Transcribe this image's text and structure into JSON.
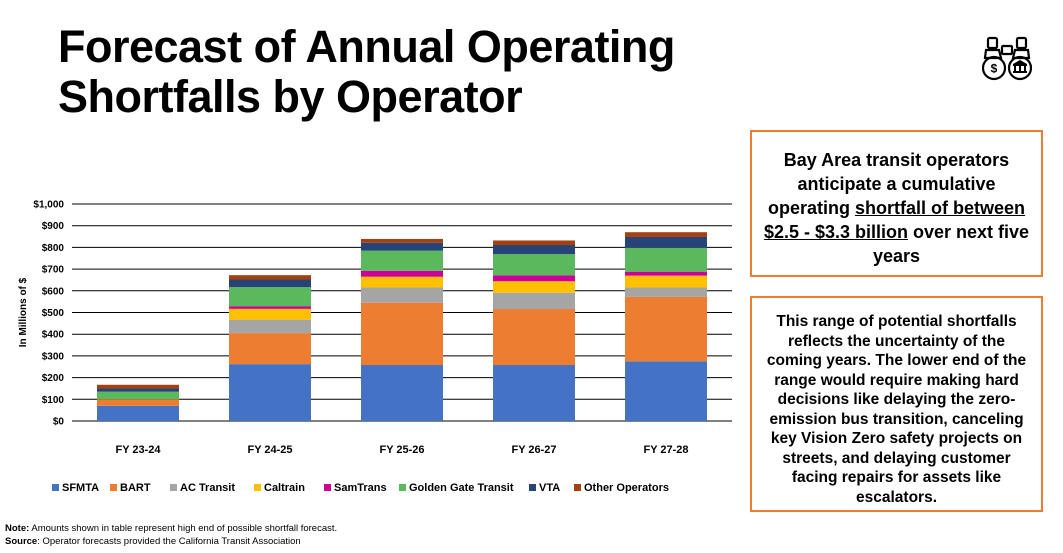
{
  "title": "Forecast of Annual Operating Shortfalls by Operator",
  "callout": {
    "line1": "Bay Area transit operators anticipate a cumulative operating ",
    "underlined": "shortfall of between $2.5 - $3.3 billion",
    "line2": " over next five years"
  },
  "explanation": "This range of potential shortfalls reflects the uncertainty of the coming years. The lower end of the range would require making hard decisions like delaying the zero-emission bus transition, canceling key Vision Zero safety projects on streets, and delaying customer facing repairs for assets like escalators.",
  "footnote": {
    "note_label": "Note:",
    "note_text": " Amounts shown in table represent high end of possible shortfall forecast.",
    "source_label": "Source",
    "source_text": ": Operator forecasts provided the California Transit Association"
  },
  "icons": {
    "top_right": "binoculars-money-icon"
  },
  "chart_data": {
    "type": "bar",
    "stacked": true,
    "categories": [
      "FY 23-24",
      "FY 24-25",
      "FY 25-26",
      "FY 26-27",
      "FY 27-28"
    ],
    "ylabel": "In Millions of $",
    "ylim": [
      0,
      1000
    ],
    "yticks": [
      0,
      100,
      200,
      300,
      400,
      500,
      600,
      700,
      800,
      900,
      1000
    ],
    "ytick_labels": [
      "$0",
      "$100",
      "$200",
      "$300",
      "$400",
      "$500",
      "$600",
      "$700",
      "$800",
      "$900",
      "$1,000"
    ],
    "grid": true,
    "legend_position": "bottom",
    "series": [
      {
        "name": "SFMTA",
        "color": "#4472c4",
        "values": [
          70,
          262,
          258,
          258,
          275
        ]
      },
      {
        "name": "BART",
        "color": "#ed7d31",
        "values": [
          30,
          143,
          287,
          258,
          297
        ]
      },
      {
        "name": "AC Transit",
        "color": "#a5a5a5",
        "values": [
          0,
          62,
          70,
          75,
          43
        ]
      },
      {
        "name": "Caltrain",
        "color": "#ffc000",
        "values": [
          0,
          50,
          50,
          53,
          55
        ]
      },
      {
        "name": "SamTrans",
        "color": "#cc0099",
        "values": [
          0,
          12,
          27,
          27,
          18
        ]
      },
      {
        "name": "Golden Gate Transit",
        "color": "#5cb85c",
        "values": [
          35,
          88,
          93,
          98,
          110
        ]
      },
      {
        "name": "VTA",
        "color": "#264478",
        "values": [
          15,
          35,
          36,
          42,
          50
        ]
      },
      {
        "name": "Other Operators",
        "color": "#a5410f",
        "values": [
          17,
          20,
          18,
          21,
          22
        ]
      }
    ]
  }
}
